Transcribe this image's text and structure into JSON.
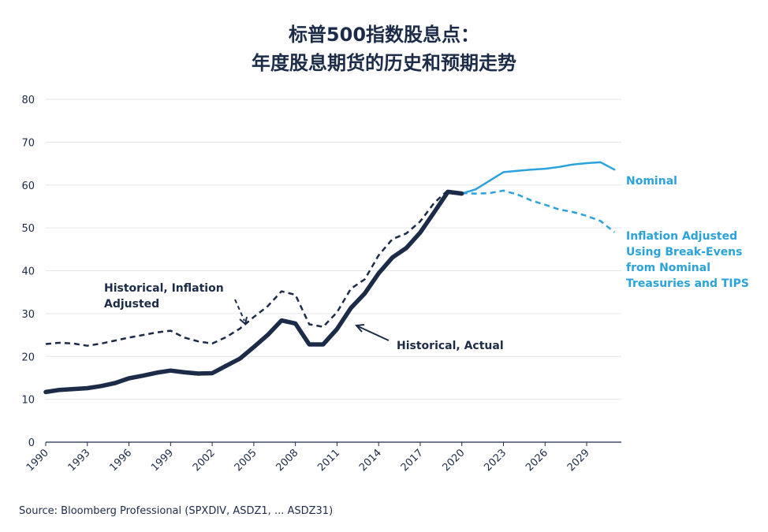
{
  "title_lines": [
    "标普500指数股息点：",
    "年度股息期货的历史和预期走势"
  ],
  "source": "Source: Bloomberg Professional (SPXDIV, ASDZ1, ... ASDZ31)",
  "colors": {
    "navy": "#1c2b48",
    "blue": "#2aa3dc",
    "grid": "#e3e6ea"
  },
  "chart_data": {
    "type": "line",
    "title": "标普500指数股息点：年度股息期货的历史和预期走势",
    "xlabel": "",
    "ylabel": "",
    "xlim": [
      1990,
      2031.5
    ],
    "ylim": [
      0,
      80
    ],
    "yticks": [
      0,
      10,
      20,
      30,
      40,
      50,
      60,
      70,
      80
    ],
    "xticks": [
      1990,
      1993,
      1996,
      1999,
      2002,
      2005,
      2008,
      2011,
      2014,
      2017,
      2020,
      2023,
      2026,
      2029
    ],
    "grid": "horizontal",
    "series": [
      {
        "name": "Historical, Actual",
        "style": "solid-thick",
        "color": "#1c2b48",
        "points": [
          [
            1990,
            11.7
          ],
          [
            1991,
            12.2
          ],
          [
            1992,
            12.4
          ],
          [
            1993,
            12.6
          ],
          [
            1994,
            13.1
          ],
          [
            1995,
            13.8
          ],
          [
            1996,
            14.9
          ],
          [
            1997,
            15.5
          ],
          [
            1998,
            16.2
          ],
          [
            1999,
            16.7
          ],
          [
            2000,
            16.3
          ],
          [
            2001,
            16.0
          ],
          [
            2002,
            16.1
          ],
          [
            2003,
            17.8
          ],
          [
            2004,
            19.5
          ],
          [
            2005,
            22.2
          ],
          [
            2006,
            25.0
          ],
          [
            2007,
            28.4
          ],
          [
            2008,
            27.7
          ],
          [
            2009,
            22.8
          ],
          [
            2010,
            22.8
          ],
          [
            2011,
            26.4
          ],
          [
            2012,
            31.3
          ],
          [
            2013,
            34.7
          ],
          [
            2014,
            39.4
          ],
          [
            2015,
            43.1
          ],
          [
            2016,
            45.3
          ],
          [
            2017,
            48.9
          ],
          [
            2018,
            53.6
          ],
          [
            2019,
            58.4
          ],
          [
            2020,
            58.0
          ]
        ]
      },
      {
        "name": "Historical, Inflation Adjusted",
        "style": "dashed",
        "color": "#1c2b48",
        "points": [
          [
            1990,
            22.9
          ],
          [
            1991,
            23.2
          ],
          [
            1992,
            23.0
          ],
          [
            1993,
            22.5
          ],
          [
            1994,
            23.0
          ],
          [
            1995,
            23.7
          ],
          [
            1996,
            24.4
          ],
          [
            1997,
            25.0
          ],
          [
            1998,
            25.6
          ],
          [
            1999,
            26.0
          ],
          [
            2000,
            24.4
          ],
          [
            2001,
            23.5
          ],
          [
            2002,
            23.0
          ],
          [
            2003,
            24.5
          ],
          [
            2004,
            26.5
          ],
          [
            2005,
            29.2
          ],
          [
            2006,
            31.7
          ],
          [
            2007,
            35.2
          ],
          [
            2008,
            34.4
          ],
          [
            2009,
            27.5
          ],
          [
            2010,
            26.9
          ],
          [
            2011,
            30.3
          ],
          [
            2012,
            35.8
          ],
          [
            2013,
            38.0
          ],
          [
            2014,
            43.6
          ],
          [
            2015,
            47.4
          ],
          [
            2016,
            48.7
          ],
          [
            2017,
            51.5
          ],
          [
            2018,
            55.8
          ],
          [
            2019,
            58.8
          ],
          [
            2020,
            57.7
          ]
        ]
      },
      {
        "name": "Nominal",
        "style": "solid",
        "color": "#2aa3dc",
        "points": [
          [
            2020,
            58.0
          ],
          [
            2021,
            59.0
          ],
          [
            2022,
            61.0
          ],
          [
            2023,
            63.0
          ],
          [
            2024,
            63.3
          ],
          [
            2025,
            63.6
          ],
          [
            2026,
            63.8
          ],
          [
            2027,
            64.2
          ],
          [
            2028,
            64.8
          ],
          [
            2029,
            65.1
          ],
          [
            2030,
            65.3
          ],
          [
            2031,
            63.6
          ]
        ]
      },
      {
        "name": "Inflation Adjusted Using Break-Evens from Nominal Treasuries and TIPS",
        "style": "dashed",
        "color": "#2aa3dc",
        "points": [
          [
            2020,
            58.1
          ],
          [
            2021,
            58.0
          ],
          [
            2022,
            58.1
          ],
          [
            2023,
            58.7
          ],
          [
            2024,
            57.8
          ],
          [
            2025,
            56.4
          ],
          [
            2026,
            55.4
          ],
          [
            2027,
            54.3
          ],
          [
            2028,
            53.7
          ],
          [
            2029,
            52.8
          ],
          [
            2030,
            51.6
          ],
          [
            2031,
            49.0
          ]
        ]
      }
    ],
    "annotations": {
      "inflation_adjusted": [
        "Historical, Inflation",
        "Adjusted"
      ],
      "actual": "Historical, Actual",
      "nominal": "Nominal",
      "projected_adjusted": [
        "Inflation Adjusted",
        "Using Break-Evens",
        "from Nominal",
        "Treasuries and TIPS"
      ]
    }
  }
}
